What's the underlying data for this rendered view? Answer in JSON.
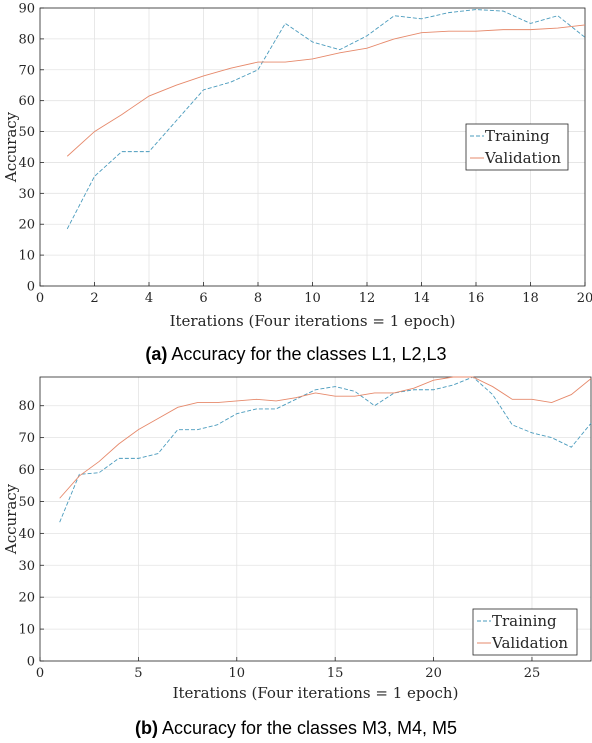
{
  "chart_data": [
    {
      "type": "line",
      "caption_label": "(a)",
      "caption_text": "Accuracy for the classes L1, L2,L3",
      "xlabel": "Iterations (Four iterations = 1 epoch)",
      "ylabel": "Accuracy",
      "xlim": [
        0,
        20
      ],
      "ylim": [
        0,
        90
      ],
      "xticks": [
        0,
        2,
        4,
        6,
        8,
        10,
        12,
        14,
        16,
        18,
        20
      ],
      "yticks": [
        0,
        10,
        20,
        30,
        40,
        50,
        60,
        70,
        80,
        90
      ],
      "grid": true,
      "legend_position": "center-right",
      "x": [
        1,
        2,
        3,
        4,
        5,
        6,
        7,
        8,
        9,
        10,
        11,
        12,
        13,
        14,
        15,
        16,
        17,
        18,
        19,
        20
      ],
      "series": [
        {
          "name": "Training",
          "style": "dashed",
          "color": "#4a9bbd",
          "values": [
            18.5,
            35.5,
            43.5,
            43.5,
            53.5,
            63.5,
            66,
            70,
            85,
            79,
            76.5,
            81,
            87.5,
            86.5,
            88.5,
            89.5,
            89,
            85,
            87.5,
            80.5
          ]
        },
        {
          "name": "Validation",
          "style": "solid",
          "color": "#e6896b",
          "values": [
            42,
            50,
            55.5,
            61.5,
            65,
            68,
            70.5,
            72.5,
            72.5,
            73.5,
            75.5,
            77,
            80,
            82,
            82.5,
            82.5,
            83,
            83,
            83.5,
            84.5
          ]
        }
      ]
    },
    {
      "type": "line",
      "caption_label": "(b)",
      "caption_text": "Accuracy for the classes M3, M4, M5",
      "xlabel": "Iterations (Four iterations = 1 epoch)",
      "ylabel": "Accuracy",
      "xlim": [
        0,
        28
      ],
      "ylim": [
        0,
        89
      ],
      "xticks": [
        0,
        5,
        10,
        15,
        20,
        25
      ],
      "yticks": [
        0,
        10,
        20,
        30,
        40,
        50,
        60,
        70,
        80
      ],
      "grid": true,
      "legend_position": "bottom-right",
      "x": [
        1,
        2,
        3,
        4,
        5,
        6,
        7,
        8,
        9,
        10,
        11,
        12,
        13,
        14,
        15,
        16,
        17,
        18,
        19,
        20,
        21,
        22,
        23,
        24,
        25,
        26,
        27,
        28
      ],
      "series": [
        {
          "name": "Training",
          "style": "dashed",
          "color": "#4a9bbd",
          "values": [
            43.5,
            58.5,
            59,
            63.5,
            63.5,
            65,
            72.5,
            72.5,
            74,
            77.5,
            79,
            79,
            82,
            85,
            86,
            84.5,
            80,
            84,
            85,
            85,
            86.5,
            89,
            83.5,
            74,
            71.5,
            70,
            67,
            74.5
          ]
        },
        {
          "name": "Validation",
          "style": "solid",
          "color": "#e6896b",
          "values": [
            51,
            58,
            62.5,
            68,
            72.5,
            76,
            79.5,
            81,
            81,
            81.5,
            82,
            81.5,
            82.5,
            84,
            83,
            83,
            84,
            84,
            85.5,
            88,
            89,
            89,
            86,
            82,
            82,
            81,
            83.5,
            88.5
          ]
        }
      ]
    }
  ]
}
